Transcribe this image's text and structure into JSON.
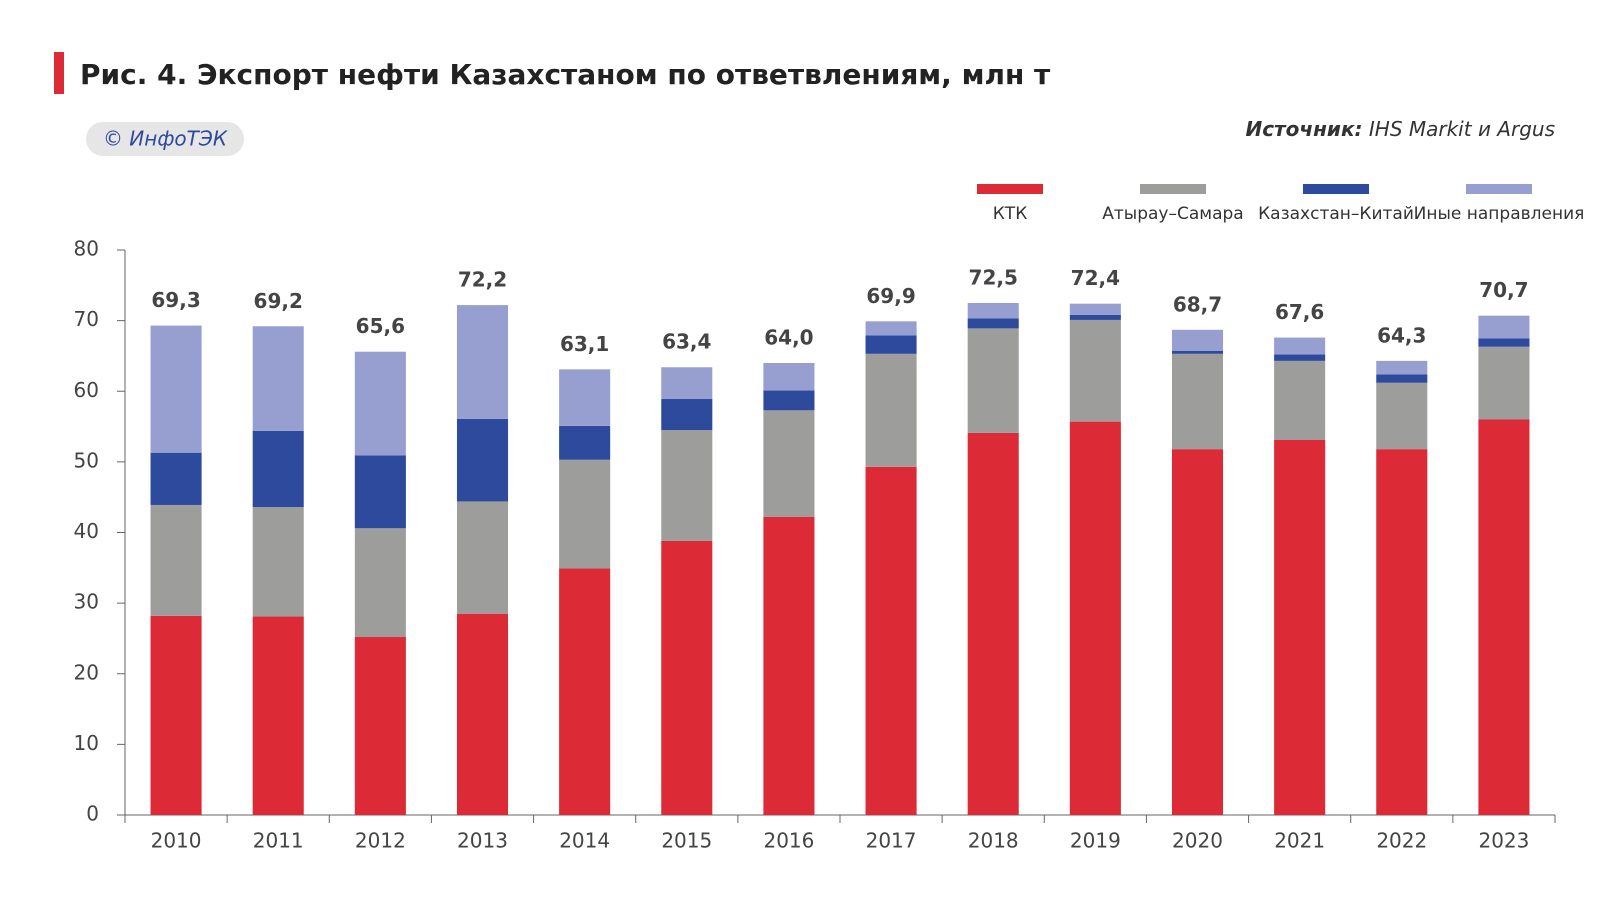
{
  "chart_data": {
    "type": "stacked_bar",
    "title": "Рис. 4. Экспорт нефти Казахстаном по ответвлениям, млн т",
    "logo": "© ИнфоТЭК",
    "source_label": "Источник:",
    "source_text": "IHS Markit и Argus",
    "categories": [
      "2010",
      "2011",
      "2012",
      "2013",
      "2014",
      "2015",
      "2016",
      "2017",
      "2018",
      "2019",
      "2020",
      "2021",
      "2022",
      "2023"
    ],
    "series": [
      {
        "name": "КТК",
        "color": "#dc2b36",
        "values": [
          28.2,
          28.1,
          25.2,
          28.5,
          34.9,
          38.8,
          42.2,
          49.3,
          54.1,
          55.7,
          51.8,
          53.1,
          51.8,
          56.0
        ]
      },
      {
        "name": "Атырау–Самара",
        "color": "#9d9d9c",
        "values": [
          15.7,
          15.5,
          15.4,
          15.9,
          15.4,
          15.7,
          15.1,
          16.0,
          14.8,
          14.4,
          13.5,
          11.2,
          9.4,
          10.3
        ]
      },
      {
        "name": "Казахстан–Китай",
        "color": "#2e4a9c",
        "values": [
          7.4,
          10.8,
          10.3,
          11.7,
          4.8,
          4.4,
          2.8,
          2.6,
          1.4,
          0.7,
          0.4,
          0.9,
          1.2,
          1.2
        ]
      },
      {
        "name": "Иные направления",
        "color": "#979fd1",
        "values": [
          18.0,
          14.8,
          14.7,
          16.1,
          8.0,
          4.5,
          3.9,
          2.0,
          2.2,
          1.6,
          3.0,
          2.4,
          1.9,
          3.2
        ]
      }
    ],
    "totals": {
      "values": [
        69.3,
        69.2,
        65.6,
        72.2,
        63.1,
        63.4,
        64.0,
        69.9,
        72.5,
        72.4,
        68.7,
        67.6,
        64.3,
        70.7
      ],
      "value_labels": [
        "69,3",
        "69,2",
        "65,6",
        "72,2",
        "63,1",
        "63,4",
        "64,0",
        "69,9",
        "72,5",
        "72,4",
        "68,7",
        "67,6",
        "64,3",
        "70,7"
      ]
    },
    "ylim": [
      0,
      80
    ],
    "yticks": [
      0,
      10,
      20,
      30,
      40,
      50,
      60,
      70,
      80
    ]
  }
}
